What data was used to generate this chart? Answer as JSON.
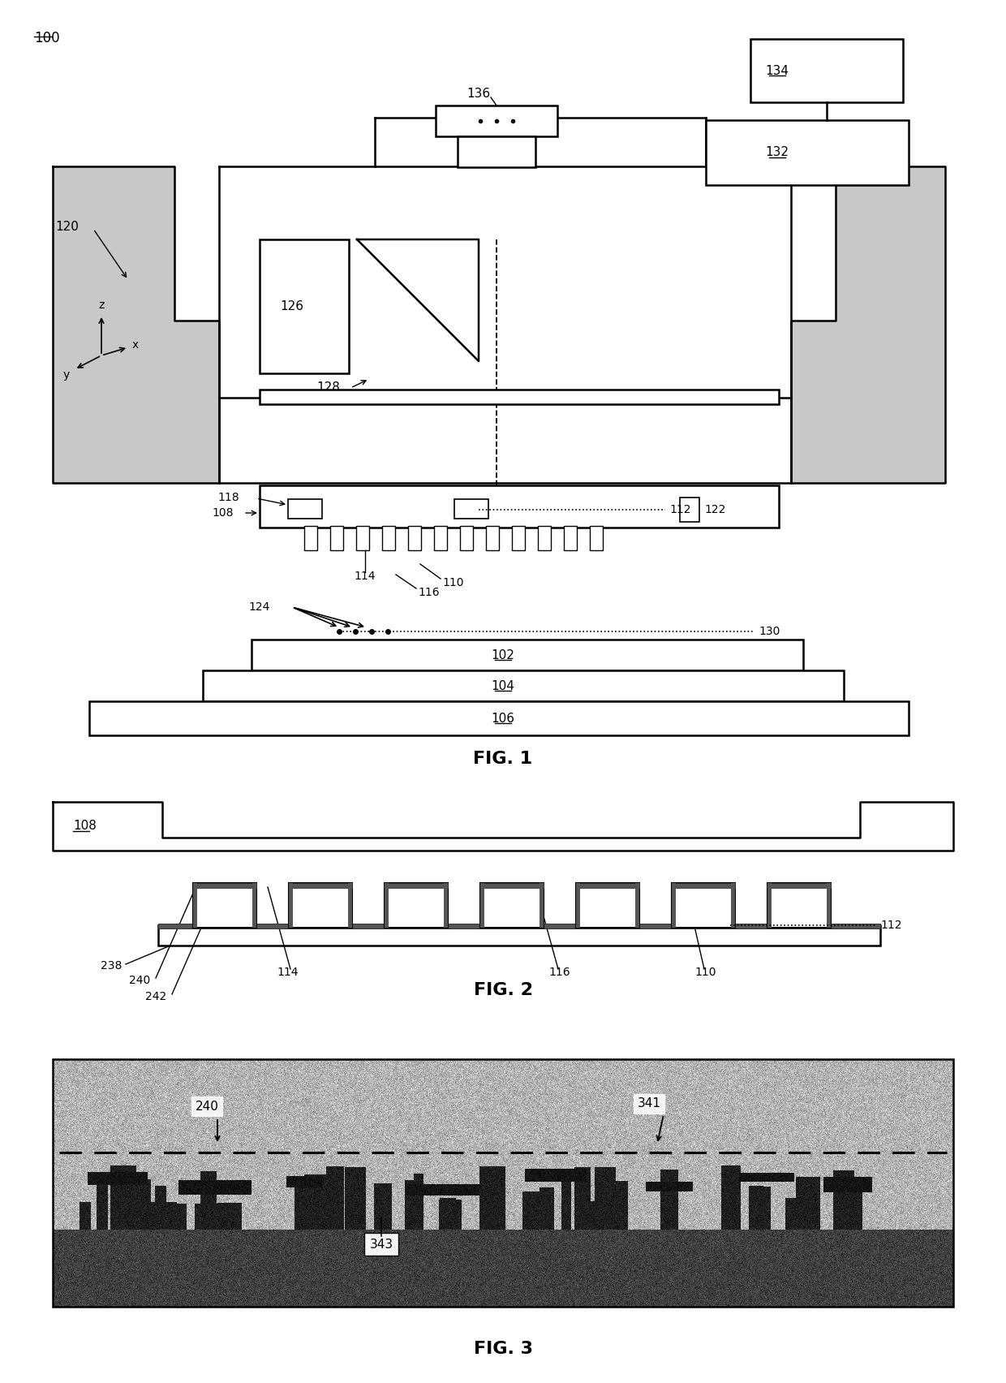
{
  "fig_width": 12.4,
  "fig_height": 17.04,
  "bg_color": "#ffffff",
  "line_color": "#000000",
  "gray_fill": "#c8c8c8",
  "fig1_title": "FIG. 1",
  "fig2_title": "FIG. 2",
  "fig3_title": "FIG. 3"
}
